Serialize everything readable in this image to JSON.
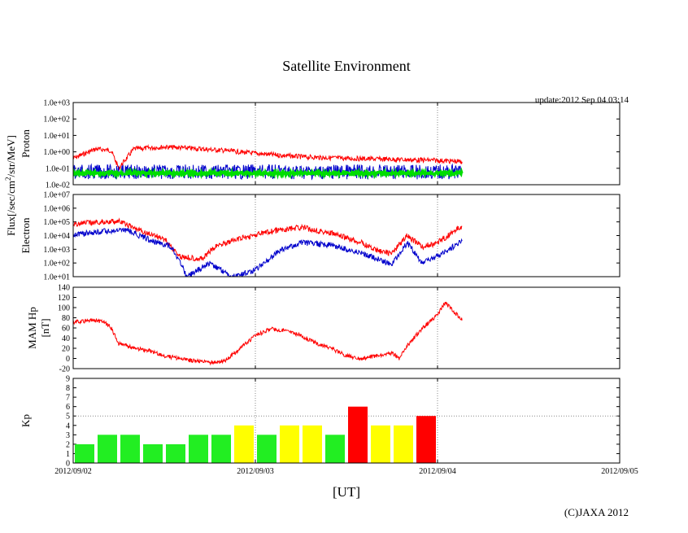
{
  "figure": {
    "title": "Satellite Environment",
    "update_text": "update:2012 Sep 04 03:14",
    "x_axis_title": "[UT]",
    "copyright": "(C)JAXA 2012",
    "x_ticks": [
      "2012/09/02",
      "2012/09/03",
      "2012/09/04",
      "2012/09/05"
    ],
    "flux_label": "Flux[/sec/cm2/str/MeV]",
    "flux_label_main": "Flux[/sec/cm",
    "flux_label_sup": "2",
    "flux_label_tail": "/str/MeV]"
  },
  "chart_data": [
    {
      "type": "line",
      "name": "proton",
      "ylabel": "Proton",
      "yscale": "log",
      "ylim": [
        0.01,
        1000
      ],
      "y_ticks": [
        "1.0e-02",
        "1.0e-01",
        "1.0e+00",
        "1.0e+01",
        "1.0e+02",
        "1.0e+03"
      ],
      "xlim": [
        "2012-09-02 00:00",
        "2012-09-05 00:00"
      ],
      "x_grid": true,
      "series": [
        {
          "color": "#ff0000",
          "x": [
            "2012-09-02 00:00",
            "2012-09-02 03:00",
            "2012-09-02 05:00",
            "2012-09-02 06:00",
            "2012-09-02 08:00",
            "2012-09-02 12:00",
            "2012-09-02 16:00",
            "2012-09-02 20:00",
            "2012-09-03 00:00",
            "2012-09-03 06:00",
            "2012-09-03 12:00",
            "2012-09-03 18:00",
            "2012-09-04 00:00",
            "2012-09-04 03:14"
          ],
          "y": [
            0.4,
            1.5,
            1.2,
            0.1,
            1.5,
            2.0,
            1.6,
            1.2,
            0.8,
            0.5,
            0.4,
            0.35,
            0.3,
            0.25
          ]
        },
        {
          "color": "#0000cc",
          "x": [
            "2012-09-02 00:00",
            "2012-09-03 12:00",
            "2012-09-04 03:14"
          ],
          "y": [
            0.06,
            0.06,
            0.06
          ]
        },
        {
          "color": "#00dd00",
          "x": [
            "2012-09-02 00:00",
            "2012-09-03 12:00",
            "2012-09-04 03:14"
          ],
          "y": [
            0.05,
            0.05,
            0.05
          ]
        }
      ]
    },
    {
      "type": "line",
      "name": "electron",
      "ylabel": "Electron",
      "yscale": "log",
      "ylim": [
        10,
        10000000
      ],
      "y_ticks": [
        "1.0e+01",
        "1.0e+02",
        "1.0e+03",
        "1.0e+04",
        "1.0e+05",
        "1.0e+06",
        "1.0e+07"
      ],
      "xlim": [
        "2012-09-02 00:00",
        "2012-09-05 00:00"
      ],
      "x_grid": true,
      "series": [
        {
          "color": "#ff0000",
          "x": [
            "2012-09-02 00:00",
            "2012-09-02 04:00",
            "2012-09-02 06:00",
            "2012-09-02 09:00",
            "2012-09-02 12:00",
            "2012-09-02 14:00",
            "2012-09-02 17:00",
            "2012-09-02 19:00",
            "2012-09-02 22:00",
            "2012-09-03 02:00",
            "2012-09-03 06:00",
            "2012-09-03 10:00",
            "2012-09-03 14:00",
            "2012-09-03 16:00",
            "2012-09-03 18:00",
            "2012-09-03 20:00",
            "2012-09-03 22:00",
            "2012-09-04 00:00",
            "2012-09-04 03:14"
          ],
          "y": [
            70000,
            100000,
            110000,
            20000,
            6000,
            300,
            200,
            2000,
            6000,
            20000,
            40000,
            15000,
            3000,
            800,
            500,
            10000,
            1500,
            3000,
            50000
          ]
        },
        {
          "color": "#0000cc",
          "x": [
            "2012-09-02 00:00",
            "2012-09-02 04:00",
            "2012-09-02 07:00",
            "2012-09-02 10:00",
            "2012-09-02 13:00",
            "2012-09-02 15:00",
            "2012-09-02 18:00",
            "2012-09-02 21:00",
            "2012-09-03 00:00",
            "2012-09-03 03:00",
            "2012-09-03 06:00",
            "2012-09-03 10:00",
            "2012-09-03 14:00",
            "2012-09-03 16:00",
            "2012-09-03 18:00",
            "2012-09-03 20:00",
            "2012-09-03 22:00",
            "2012-09-04 00:00",
            "2012-09-04 03:14"
          ],
          "y": [
            12000,
            20000,
            25000,
            5000,
            1500,
            10,
            100,
            10,
            30,
            700,
            3000,
            2000,
            500,
            200,
            80,
            3000,
            100,
            300,
            4000
          ]
        }
      ]
    },
    {
      "type": "line",
      "name": "mam-hp",
      "ylabel": "MAM Hp [nT]",
      "ylabel_line1": "MAM Hp",
      "ylabel_line2": "[nT]",
      "yscale": "linear",
      "ylim": [
        -20,
        140
      ],
      "y_ticks": [
        "-20",
        "0",
        "20",
        "40",
        "60",
        "80",
        "100",
        "120",
        "140"
      ],
      "xlim": [
        "2012-09-02 00:00",
        "2012-09-05 00:00"
      ],
      "x_grid": true,
      "series": [
        {
          "color": "#ff0000",
          "x": [
            "2012-09-02 00:00",
            "2012-09-02 02:00",
            "2012-09-02 03:00",
            "2012-09-02 04:00",
            "2012-09-02 05:00",
            "2012-09-02 06:00",
            "2012-09-02 08:00",
            "2012-09-02 10:00",
            "2012-09-02 12:00",
            "2012-09-02 14:00",
            "2012-09-02 16:00",
            "2012-09-02 18:00",
            "2012-09-02 20:00",
            "2012-09-02 22:00",
            "2012-09-03 00:00",
            "2012-09-03 02:00",
            "2012-09-03 04:00",
            "2012-09-03 06:00",
            "2012-09-03 08:00",
            "2012-09-03 10:00",
            "2012-09-03 12:00",
            "2012-09-03 14:00",
            "2012-09-03 16:00",
            "2012-09-03 18:00",
            "2012-09-03 19:00",
            "2012-09-03 20:00",
            "2012-09-03 22:00",
            "2012-09-04 00:00",
            "2012-09-04 01:00",
            "2012-09-04 02:00",
            "2012-09-04 03:14"
          ],
          "y": [
            72,
            74,
            75,
            72,
            60,
            30,
            20,
            15,
            5,
            0,
            -5,
            -8,
            -5,
            20,
            45,
            58,
            55,
            45,
            30,
            20,
            5,
            0,
            5,
            10,
            0,
            25,
            60,
            85,
            110,
            95,
            75
          ]
        }
      ]
    },
    {
      "type": "bar",
      "name": "kp",
      "ylabel": "Kp",
      "ylim": [
        0,
        9
      ],
      "y_ticks": [
        "0",
        "1",
        "2",
        "3",
        "4",
        "5",
        "6",
        "7",
        "8",
        "9"
      ],
      "xlim": [
        "2012-09-02 00:00",
        "2012-09-05 00:00"
      ],
      "x_grid": true,
      "y_reference_line": 5,
      "bar_interval_hours": 3,
      "x": [
        "2012-09-02 00:00",
        "2012-09-02 03:00",
        "2012-09-02 06:00",
        "2012-09-02 09:00",
        "2012-09-02 12:00",
        "2012-09-02 15:00",
        "2012-09-02 18:00",
        "2012-09-02 21:00",
        "2012-09-03 00:00",
        "2012-09-03 03:00",
        "2012-09-03 06:00",
        "2012-09-03 09:00",
        "2012-09-03 12:00",
        "2012-09-03 15:00",
        "2012-09-03 18:00",
        "2012-09-03 21:00"
      ],
      "values": [
        2,
        3,
        3,
        2,
        2,
        3,
        3,
        4,
        3,
        4,
        4,
        3,
        6,
        4,
        4,
        5
      ],
      "colors": [
        "#22ee22",
        "#22ee22",
        "#22ee22",
        "#22ee22",
        "#22ee22",
        "#22ee22",
        "#22ee22",
        "#ffff00",
        "#22ee22",
        "#ffff00",
        "#ffff00",
        "#22ee22",
        "#ff0000",
        "#ffff00",
        "#ffff00",
        "#ff0000"
      ]
    }
  ]
}
